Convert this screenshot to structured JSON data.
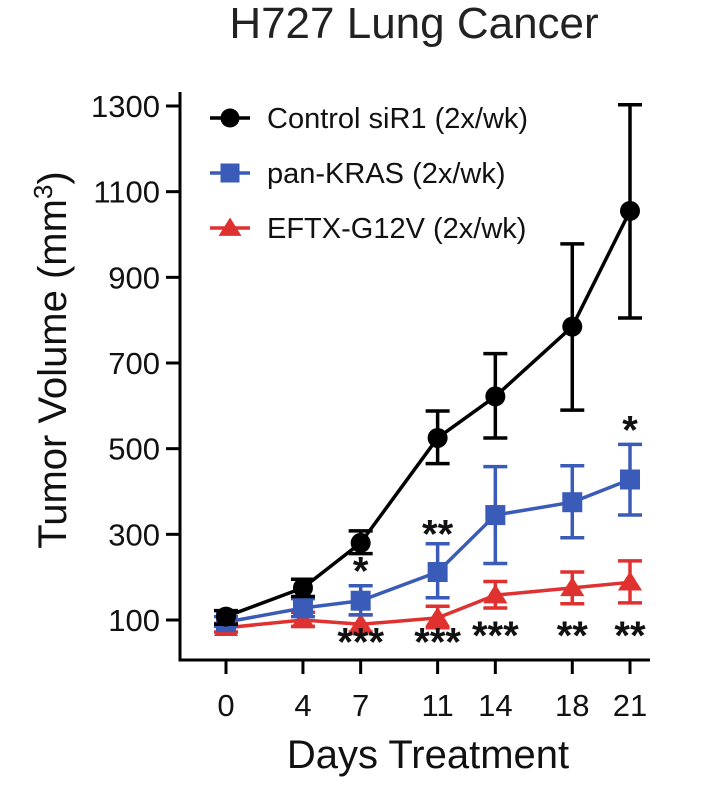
{
  "chart_data": {
    "type": "line",
    "title": "H727 Lung Cancer",
    "xlabel": "Days Treatment",
    "ylabel_main": "Tumor Volume (mm",
    "ylabel_sup": "3",
    "ylabel_close": ")",
    "x": [
      0,
      4,
      7,
      11,
      14,
      18,
      21
    ],
    "x_tick_labels": [
      "0",
      "4",
      "7",
      "11",
      "14",
      "18",
      "21"
    ],
    "y_ticks": [
      100,
      300,
      500,
      700,
      900,
      1100,
      1300
    ],
    "y_tick_labels": [
      "100",
      "300",
      "500",
      "700",
      "900",
      "1100",
      "1300"
    ],
    "ylim": [
      30,
      1340
    ],
    "legend_position": "top-left",
    "series": [
      {
        "name": "Control siR1 (2x/wk)",
        "color": "#000000",
        "marker": "circle",
        "values": [
          108,
          175,
          280,
          525,
          622,
          785,
          1055
        ],
        "err_lower": [
          90,
          155,
          255,
          465,
          525,
          590,
          805
        ],
        "err_upper": [
          122,
          195,
          308,
          588,
          722,
          978,
          1303
        ]
      },
      {
        "name": "pan-KRAS (2x/wk)",
        "color": "#3a5bb8",
        "marker": "square",
        "values": [
          95,
          128,
          145,
          212,
          345,
          375,
          428
        ],
        "err_lower": [
          85,
          108,
          112,
          152,
          232,
          292,
          345
        ],
        "err_upper": [
          108,
          150,
          180,
          278,
          458,
          460,
          510
        ]
      },
      {
        "name": "EFTX-G12V (2x/wk)",
        "color": "#e03131",
        "marker": "triangle",
        "values": [
          82,
          100,
          90,
          105,
          158,
          175,
          188
        ],
        "err_lower": [
          72,
          85,
          72,
          82,
          128,
          138,
          140
        ],
        "err_upper": [
          92,
          118,
          112,
          132,
          190,
          212,
          238
        ]
      }
    ],
    "annotations": [
      {
        "x": 7,
        "text": "*",
        "y_value": 215
      },
      {
        "x": 21,
        "text": "*",
        "y_value": 545
      },
      {
        "x": 11,
        "text": "**",
        "y_value": 302
      },
      {
        "x": 7,
        "text": "***",
        "y_value": 50
      },
      {
        "x": 11,
        "text": "***",
        "y_value": 50
      },
      {
        "x": 14,
        "text": "***",
        "y_value": 65
      },
      {
        "x": 18,
        "text": "**",
        "y_value": 65
      },
      {
        "x": 21,
        "text": "**",
        "y_value": 65
      }
    ]
  }
}
